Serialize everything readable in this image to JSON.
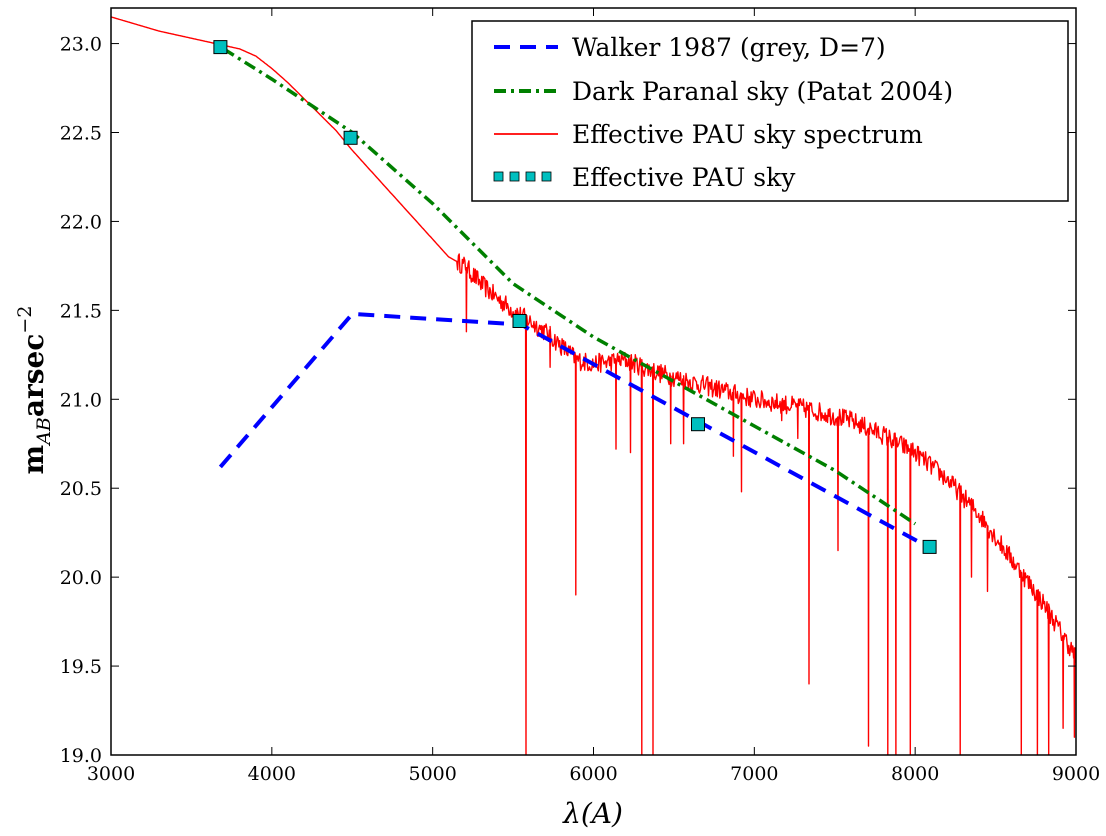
{
  "chart_data": {
    "type": "line",
    "title": "",
    "xlabel": "λ(A)",
    "ylabel_parts": {
      "base": "m",
      "sub": "AB",
      "unit": "arsec",
      "sup": "−2"
    },
    "xlim": [
      3000,
      9000
    ],
    "ylim": [
      19.0,
      23.2
    ],
    "xticks": [
      3000,
      4000,
      5000,
      6000,
      7000,
      8000,
      9000
    ],
    "yticks": [
      19.0,
      19.5,
      20.0,
      20.5,
      21.0,
      21.5,
      22.0,
      22.5,
      23.0
    ],
    "xtick_labels": [
      "3000",
      "4000",
      "5000",
      "6000",
      "7000",
      "8000",
      "9000"
    ],
    "ytick_labels": [
      "19.0",
      "19.5",
      "20.0",
      "20.5",
      "21.0",
      "21.5",
      "22.0",
      "22.5",
      "23.0"
    ],
    "grid": false,
    "legend_position": "top-right",
    "series": [
      {
        "name": "Walker 1987 (grey, D=7)",
        "style": "dashed",
        "color": "#0000ff",
        "x": [
          3680,
          4500,
          5550,
          8100
        ],
        "y": [
          20.62,
          21.48,
          21.42,
          20.16
        ]
      },
      {
        "name": "Dark Paranal sky (Patat 2004)",
        "style": "dashdot",
        "color": "#008000",
        "x": [
          3700,
          4000,
          4500,
          5000,
          5500,
          6000,
          6500,
          7000,
          7500,
          8000
        ],
        "y": [
          22.97,
          22.8,
          22.5,
          22.1,
          21.65,
          21.35,
          21.1,
          20.85,
          20.6,
          20.3
        ]
      },
      {
        "name": "Effective PAU sky spectrum",
        "style": "solid",
        "color": "#ff0000",
        "continuum": {
          "x": [
            3000,
            3300,
            3600,
            3700,
            3800,
            3900,
            4000,
            4100,
            4200,
            4300,
            4400,
            4500,
            4600,
            4700,
            4800,
            4900,
            5000,
            5100,
            5200,
            5300,
            5400,
            5500,
            5600,
            5700,
            5800,
            5900,
            6000,
            6200,
            6400,
            6600,
            6800,
            7000,
            7200,
            7400,
            7600,
            7800,
            8000,
            8200,
            8400,
            8600,
            8800,
            9000
          ],
          "y": [
            23.15,
            23.07,
            23.01,
            22.99,
            22.97,
            22.93,
            22.86,
            22.78,
            22.69,
            22.6,
            22.51,
            22.4,
            22.3,
            22.2,
            22.1,
            22.0,
            21.9,
            21.8,
            21.75,
            21.65,
            21.57,
            21.5,
            21.44,
            21.38,
            21.3,
            21.22,
            21.2,
            21.22,
            21.15,
            21.1,
            21.05,
            21.0,
            20.97,
            20.93,
            20.88,
            20.8,
            20.7,
            20.55,
            20.35,
            20.1,
            19.85,
            19.55
          ]
        },
        "absorption_lines": [
          {
            "x": 5210,
            "y": 21.38
          },
          {
            "x": 5580,
            "y": 19.0
          },
          {
            "x": 5730,
            "y": 21.18
          },
          {
            "x": 5890,
            "y": 19.9
          },
          {
            "x": 6140,
            "y": 20.72
          },
          {
            "x": 6230,
            "y": 20.7
          },
          {
            "x": 6300,
            "y": 19.0
          },
          {
            "x": 6370,
            "y": 19.0
          },
          {
            "x": 6480,
            "y": 20.75
          },
          {
            "x": 6560,
            "y": 20.75
          },
          {
            "x": 6870,
            "y": 20.68
          },
          {
            "x": 6920,
            "y": 20.48
          },
          {
            "x": 7170,
            "y": 20.88
          },
          {
            "x": 7270,
            "y": 20.78
          },
          {
            "x": 7340,
            "y": 19.4
          },
          {
            "x": 7520,
            "y": 20.15
          },
          {
            "x": 7710,
            "y": 19.05
          },
          {
            "x": 7830,
            "y": 19.0
          },
          {
            "x": 7880,
            "y": 19.0
          },
          {
            "x": 7970,
            "y": 19.0
          },
          {
            "x": 8280,
            "y": 19.0
          },
          {
            "x": 8350,
            "y": 20.0
          },
          {
            "x": 8450,
            "y": 19.92
          },
          {
            "x": 8660,
            "y": 19.0
          },
          {
            "x": 8760,
            "y": 19.0
          },
          {
            "x": 8830,
            "y": 19.0
          },
          {
            "x": 8920,
            "y": 19.15
          },
          {
            "x": 8990,
            "y": 19.1
          }
        ]
      },
      {
        "name": "Effective PAU sky",
        "style": "square-markers",
        "color": "#00bfbf",
        "x": [
          3680,
          4490,
          5540,
          6650,
          8090
        ],
        "y": [
          22.98,
          22.47,
          21.44,
          20.86,
          20.17
        ]
      }
    ]
  }
}
